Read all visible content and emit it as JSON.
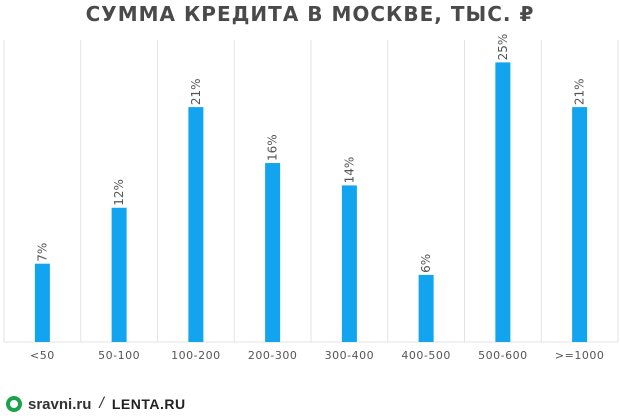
{
  "chart_data": {
    "type": "bar",
    "title": "СУММА КРЕДИТА В МОСКВЕ, ТЫС. ₽",
    "categories": [
      "<50",
      "50-100",
      "100-200",
      "200-300",
      "300-400",
      "400-500",
      "500-600",
      ">=1000"
    ],
    "values": [
      7,
      12,
      21,
      16,
      14,
      6,
      25,
      21
    ],
    "value_labels": [
      "7%",
      "12%",
      "21%",
      "16%",
      "14%",
      "6%",
      "25%",
      "21%"
    ],
    "ylim": [
      0,
      27
    ],
    "grid": "vertical",
    "bar_color": "#12a4ee",
    "grid_color": "#e3e3e3",
    "label_color": "#555555"
  },
  "footer": {
    "logo1": "sravni.ru",
    "separator": "/",
    "logo2": "LENTA.RU"
  }
}
